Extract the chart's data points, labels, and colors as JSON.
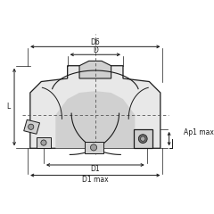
{
  "bg_color": "#ffffff",
  "body_color": "#d0d0d0",
  "body_light": "#e8e8e8",
  "body_dark": "#a0a0a0",
  "line_color": "#1a1a1a",
  "dim_color": "#1a1a1a",
  "insert_color": "#c8c8c8",
  "insert_dark": "#888888",
  "dashed_color": "#555555",
  "labels": {
    "D6": "D6",
    "D": "D",
    "L": "L",
    "D1": "D1",
    "D1max": "D1 max",
    "Ap1max": "Ap1 max"
  },
  "figsize": [
    2.4,
    2.4
  ],
  "dpi": 100
}
